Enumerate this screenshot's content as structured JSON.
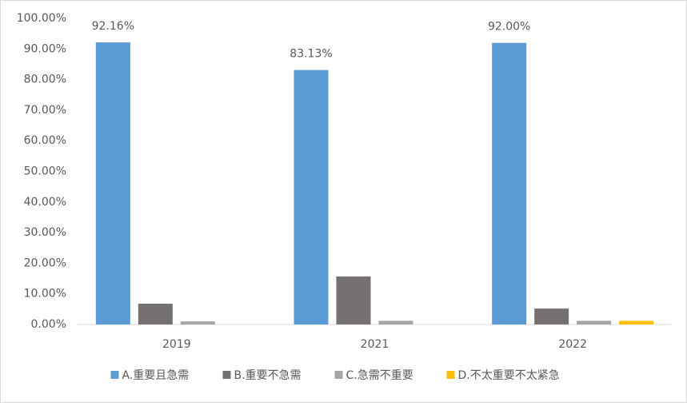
{
  "chart_data": {
    "type": "bar",
    "categories": [
      "2019",
      "2021",
      "2022"
    ],
    "series": [
      {
        "name": "A.重要且急需",
        "color": "#5b9bd5",
        "values": [
          92.16,
          83.13,
          92.0
        ],
        "value_labels": [
          "92.16%",
          "83.13%",
          "92.00%"
        ]
      },
      {
        "name": "B.重要不急需",
        "color": "#767171",
        "values": [
          6.8,
          15.7,
          5.2
        ]
      },
      {
        "name": "C.急需不重要",
        "color": "#a5a5a5",
        "values": [
          1.0,
          1.2,
          1.2
        ]
      },
      {
        "name": "D.不太重要不太紧急",
        "color": "#ffc000",
        "values": [
          0,
          0,
          1.2
        ]
      }
    ],
    "ylim": [
      0,
      100
    ],
    "yticks": [
      {
        "value": 0,
        "label": "0.00%"
      },
      {
        "value": 10,
        "label": "10.00%"
      },
      {
        "value": 20,
        "label": "20.00%"
      },
      {
        "value": 30,
        "label": "30.00%"
      },
      {
        "value": 40,
        "label": "40.00%"
      },
      {
        "value": 50,
        "label": "50.00%"
      },
      {
        "value": 60,
        "label": "60.00%"
      },
      {
        "value": 70,
        "label": "70.00%"
      },
      {
        "value": 80,
        "label": "80.00%"
      },
      {
        "value": 90,
        "label": "90.00%"
      },
      {
        "value": 100,
        "label": "100.00%"
      }
    ],
    "grid": false,
    "legend": "bottom"
  }
}
